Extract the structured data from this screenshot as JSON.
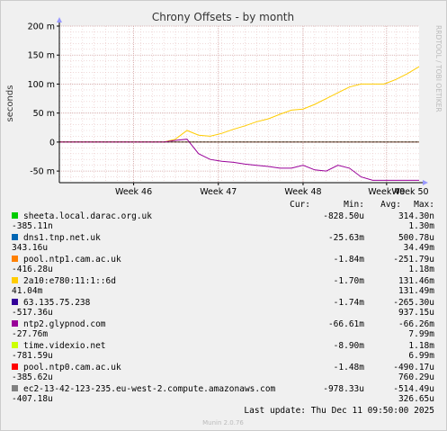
{
  "chart_data": {
    "type": "line",
    "title": "Chrony Offsets - by month",
    "ylabel": "seconds",
    "ylim": [
      -70,
      200
    ],
    "yticks": [
      -50,
      0,
      50,
      100,
      150,
      200
    ],
    "ytick_labels": [
      "-50 m",
      "0",
      "50 m",
      "100 m",
      "150 m",
      "200 m"
    ],
    "y_unit": "ms",
    "xlim": [
      0,
      31
    ],
    "x_tick_positions": [
      6.4,
      13.7,
      21.0,
      28.2,
      35.0
    ],
    "x_tick_labels": [
      "Week 46",
      "Week 47",
      "Week 48",
      "Week 49",
      "Week 50"
    ],
    "watermark": "RRDTOOL / TOBI OETIKER",
    "grid": true,
    "colors": {
      "background": "#f0f0f0",
      "plot_bg": "#ffffff",
      "grid_major": "#d0a0a0",
      "grid_minor": "#e8c4c4",
      "axis": "#000000"
    },
    "legend_header": [
      "Cur:",
      "Min:",
      "Avg:",
      "Max:"
    ],
    "series": [
      {
        "name": "sheeta.local.darac.org.uk",
        "color": "#00cc00",
        "cur": "314.30n",
        "min": "-828.50u",
        "avg": "-385.11n",
        "max": "1.30m",
        "x": [
          0,
          31
        ],
        "y": [
          0,
          0
        ]
      },
      {
        "name": "dns1.tnp.net.uk",
        "color": "#0066b3",
        "cur": "500.78u",
        "min": "-25.63m",
        "avg": "343.16u",
        "max": "34.49m",
        "x": [
          0,
          31
        ],
        "y": [
          0,
          0
        ]
      },
      {
        "name": "pool.ntp1.cam.ac.uk",
        "color": "#ff8000",
        "cur": "-251.79u",
        "min": "-1.84m",
        "avg": "-416.28u",
        "max": "1.18m",
        "x": [
          0,
          31
        ],
        "y": [
          0,
          0
        ]
      },
      {
        "name": "2a10:e780:11:1::6d",
        "color": "#ffcc00",
        "cur": "131.46m",
        "min": "-1.70m",
        "avg": "41.04m",
        "max": "131.49m",
        "x": [
          0,
          9,
          10,
          11,
          12,
          13,
          14,
          15,
          16,
          17,
          18,
          19,
          20,
          21,
          22,
          23,
          24,
          25,
          26,
          27,
          28,
          29,
          30,
          31
        ],
        "y": [
          0,
          0,
          5,
          20,
          12,
          10,
          15,
          22,
          28,
          35,
          40,
          48,
          55,
          57,
          65,
          75,
          85,
          95,
          100,
          100,
          100,
          108,
          118,
          130
        ]
      },
      {
        "name": "63.135.75.238",
        "color": "#330099",
        "cur": "-265.30u",
        "min": "-1.74m",
        "avg": "-517.36u",
        "max": "937.15u",
        "x": [
          0,
          31
        ],
        "y": [
          0,
          0
        ]
      },
      {
        "name": "ntp2.glypnod.com",
        "color": "#990099",
        "cur": "-66.26m",
        "min": "-66.61m",
        "avg": "-27.76m",
        "max": "7.99m",
        "x": [
          0,
          9,
          10,
          11,
          12,
          13,
          14,
          15,
          16,
          17,
          18,
          19,
          20,
          21,
          22,
          23,
          24,
          25,
          26,
          27,
          28,
          29,
          30,
          31
        ],
        "y": [
          0,
          0,
          3,
          5,
          -20,
          -30,
          -33,
          -35,
          -38,
          -40,
          -42,
          -45,
          -45,
          -40,
          -48,
          -50,
          -40,
          -45,
          -60,
          -66,
          -66,
          -66,
          -66,
          -66
        ]
      },
      {
        "name": "time.videxio.net",
        "color": "#ccff00",
        "cur": "1.18m",
        "min": "-8.90m",
        "avg": "-781.59u",
        "max": "6.99m",
        "x": [
          0,
          31
        ],
        "y": [
          0,
          0
        ]
      },
      {
        "name": "pool.ntp0.cam.ac.uk",
        "color": "#ff0000",
        "cur": "-490.17u",
        "min": "-1.48m",
        "avg": "-385.62u",
        "max": "760.29u",
        "x": [
          0,
          31
        ],
        "y": [
          0,
          0
        ]
      },
      {
        "name": "ec2-13-42-123-235.eu-west-2.compute.amazonaws.com",
        "color": "#808080",
        "cur": "-514.49u",
        "min": "-978.33u",
        "avg": "-407.18u",
        "max": "326.65u",
        "x": [
          0,
          31
        ],
        "y": [
          0,
          0
        ]
      }
    ]
  },
  "footer": {
    "last_update": "Last update: Thu Dec 11 09:50:00 2025",
    "munin": "Munin 2.0.76"
  }
}
